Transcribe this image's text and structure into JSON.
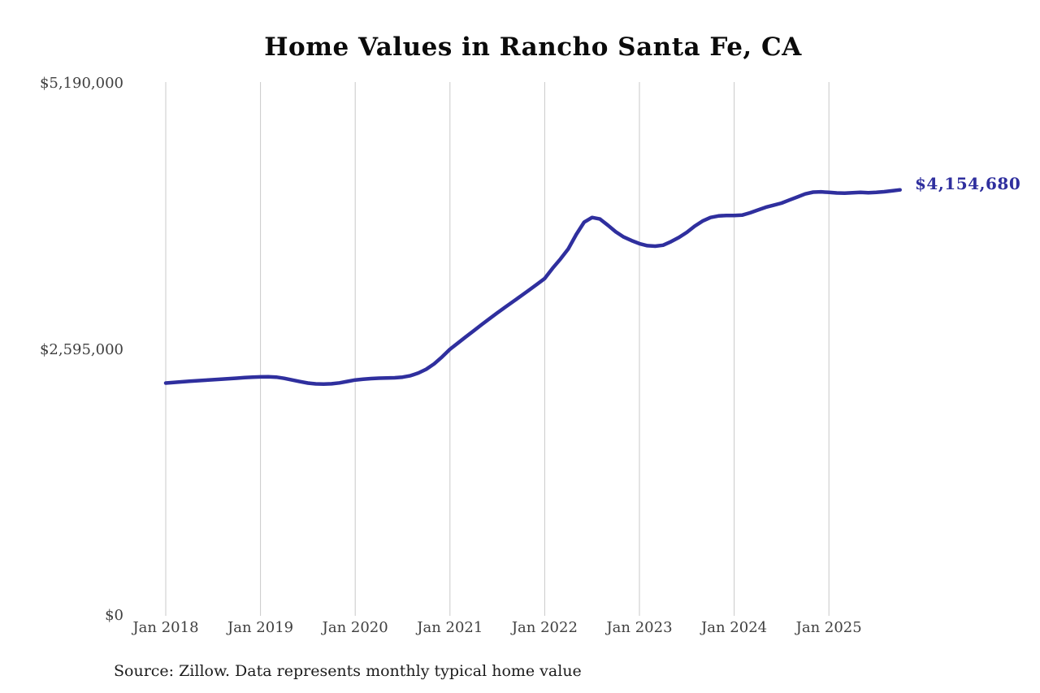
{
  "chart_data": {
    "type": "line",
    "title": "Home Values in Rancho Santa Fe, CA",
    "source_note": "Source: Zillow. Data represents monthly typical home value",
    "end_label": "$4,154,680",
    "latest_value": 4154680,
    "line_color": "#2f2f9e",
    "grid_color": "#c9c9c9",
    "tick_color": "#404040",
    "grid": "vertical-yearly",
    "legend": "none",
    "ylim": [
      0,
      5190000
    ],
    "y_ticks": [
      {
        "label": "$5,190,000",
        "value": 5190000
      },
      {
        "label": "$2,595,000",
        "value": 2595000
      },
      {
        "label": "$0",
        "value": 0
      }
    ],
    "x_ticks": [
      "Jan 2018",
      "Jan 2019",
      "Jan 2020",
      "Jan 2021",
      "Jan 2022",
      "Jan 2023",
      "Jan 2024",
      "Jan 2025"
    ],
    "x_start_month": "Jan 2018",
    "x_end_month": "Oct 2025",
    "series": [
      {
        "name": "Monthly typical home value",
        "monthly_values": [
          2270000,
          2276000,
          2282000,
          2288000,
          2293000,
          2298000,
          2303000,
          2308000,
          2313000,
          2318000,
          2323000,
          2327000,
          2330000,
          2332000,
          2328000,
          2316000,
          2300000,
          2284000,
          2270000,
          2262000,
          2260000,
          2263000,
          2272000,
          2286000,
          2300000,
          2308000,
          2314000,
          2318000,
          2320000,
          2322000,
          2328000,
          2342000,
          2368000,
          2405000,
          2458000,
          2525000,
          2600000,
          2660000,
          2720000,
          2780000,
          2840000,
          2898000,
          2955000,
          3010000,
          3065000,
          3120000,
          3176000,
          3232000,
          3290000,
          3390000,
          3480000,
          3580000,
          3720000,
          3840000,
          3885000,
          3870000,
          3810000,
          3745000,
          3695000,
          3660000,
          3630000,
          3610000,
          3605000,
          3615000,
          3650000,
          3690000,
          3740000,
          3800000,
          3850000,
          3885000,
          3900000,
          3905000,
          3905000,
          3908000,
          3930000,
          3958000,
          3985000,
          4005000,
          4025000,
          4055000,
          4085000,
          4115000,
          4132000,
          4135000,
          4130000,
          4124000,
          4122000,
          4126000,
          4130000,
          4127000,
          4130000,
          4136000,
          4145000,
          4154680
        ]
      }
    ]
  }
}
